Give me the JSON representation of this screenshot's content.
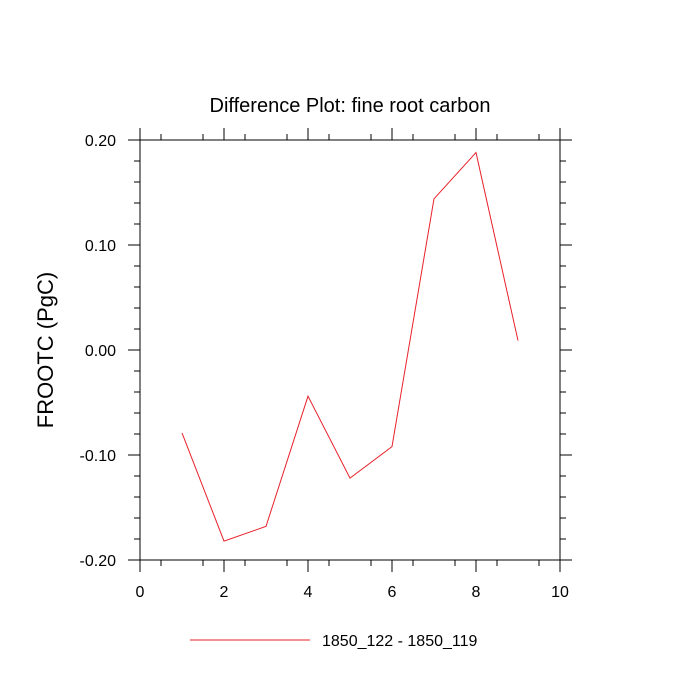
{
  "chart_data": {
    "type": "line",
    "title": "Difference Plot: fine root carbon",
    "xlabel": "",
    "ylabel": "FROOTC  (PgC)",
    "xlim": [
      0,
      10
    ],
    "ylim": [
      -0.2,
      0.2
    ],
    "x_ticks": [
      "0",
      "2",
      "4",
      "6",
      "8",
      "10"
    ],
    "y_ticks": [
      "-0.20",
      "-0.10",
      "0.00",
      "0.10",
      "0.20"
    ],
    "grid": false,
    "legend_position": "bottom-center",
    "series": [
      {
        "name": "1850_122 - 1850_119",
        "color": "#e8212a",
        "x": [
          1,
          2,
          3,
          4,
          5,
          6,
          7,
          8,
          9
        ],
        "y": [
          -0.079,
          -0.182,
          -0.168,
          -0.044,
          -0.122,
          -0.092,
          0.144,
          0.188,
          0.009
        ]
      }
    ]
  }
}
